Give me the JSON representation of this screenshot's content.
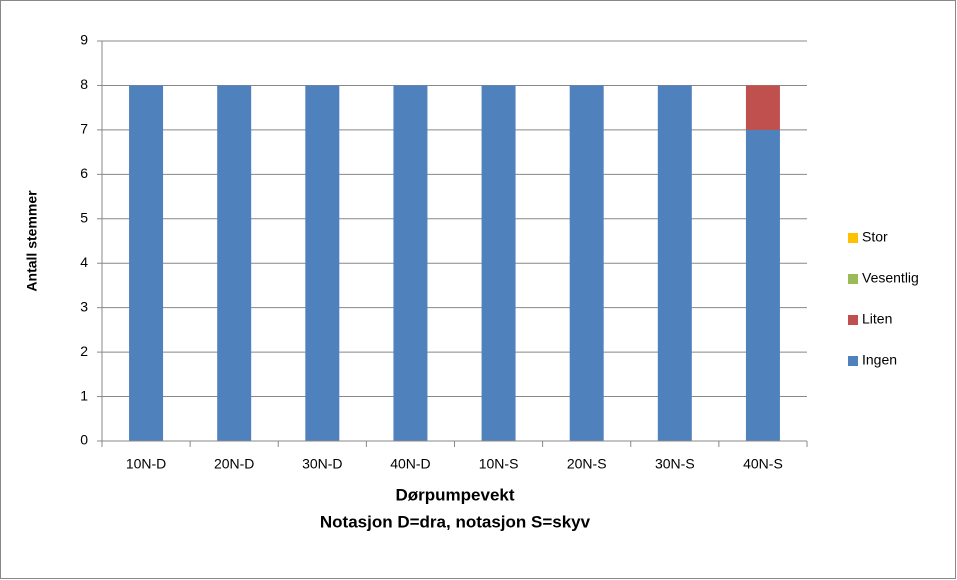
{
  "chart_data": {
    "type": "stacked_bar",
    "categories": [
      "10N-D",
      "20N-D",
      "30N-D",
      "40N-D",
      "10N-S",
      "20N-S",
      "30N-S",
      "40N-S"
    ],
    "series": [
      {
        "name": "Ingen",
        "color": "#4f81bd",
        "values": [
          8,
          8,
          8,
          8,
          8,
          8,
          8,
          7
        ]
      },
      {
        "name": "Liten",
        "color": "#c0504d",
        "values": [
          0,
          0,
          0,
          0,
          0,
          0,
          0,
          1
        ]
      },
      {
        "name": "Vesentlig",
        "color": "#9bbb59",
        "values": [
          0,
          0,
          0,
          0,
          0,
          0,
          0,
          0
        ]
      },
      {
        "name": "Stor",
        "color": "#ffc000",
        "values": [
          0,
          0,
          0,
          0,
          0,
          0,
          0,
          0
        ]
      }
    ],
    "xlabel": [
      "Dørpumpevekt",
      "Notasjon D=dra, notasjon S=skyv"
    ],
    "ylabel": "Antall stemmer",
    "ylim": [
      0,
      9
    ],
    "yticks": [
      0,
      1,
      2,
      3,
      4,
      5,
      6,
      7,
      8,
      9
    ],
    "grid": true,
    "legend": "right"
  }
}
